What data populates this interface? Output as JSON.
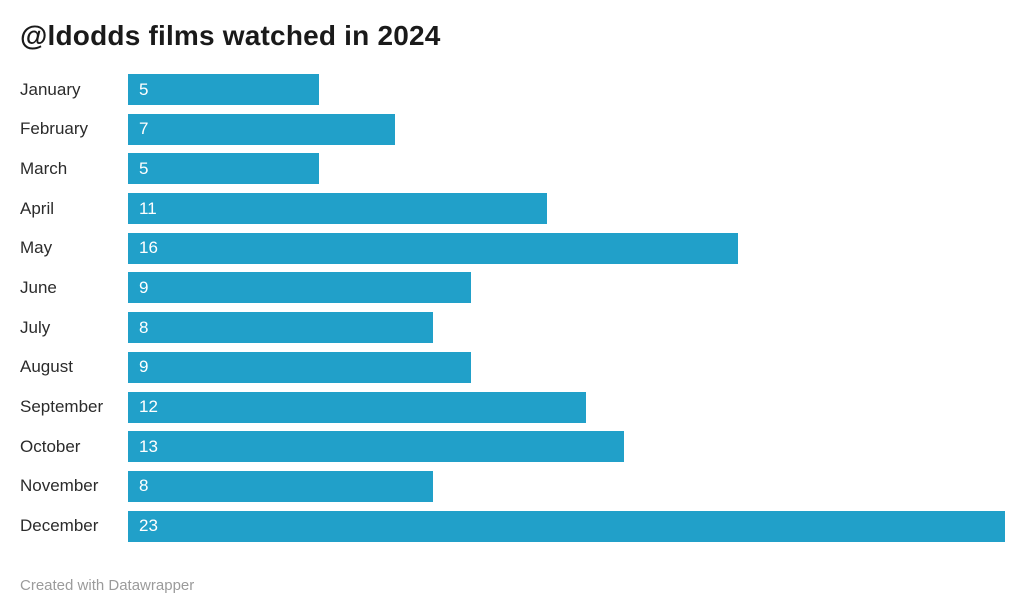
{
  "title": "@ldodds films watched in 2024",
  "footer": {
    "attribution": "Created with Datawrapper"
  },
  "colors": {
    "bar": "#21a0c9",
    "title_text": "#1a1a1a",
    "category_label_text": "#2b2b2b",
    "value_label_text": "#ffffff",
    "footer_text": "#9b9b9b",
    "background": "#ffffff"
  },
  "chart_data": {
    "type": "bar",
    "orientation": "horizontal",
    "title": "@ldodds films watched in 2024",
    "xlabel": "",
    "ylabel": "",
    "categories": [
      "January",
      "February",
      "March",
      "April",
      "May",
      "June",
      "July",
      "August",
      "September",
      "October",
      "November",
      "December"
    ],
    "values": [
      5,
      7,
      5,
      11,
      16,
      9,
      8,
      9,
      12,
      13,
      8,
      23
    ],
    "xlim": [
      0,
      23
    ],
    "grid": false,
    "legend": false,
    "value_labels_position": "inside-left",
    "bar_color": "#21a0c9"
  }
}
